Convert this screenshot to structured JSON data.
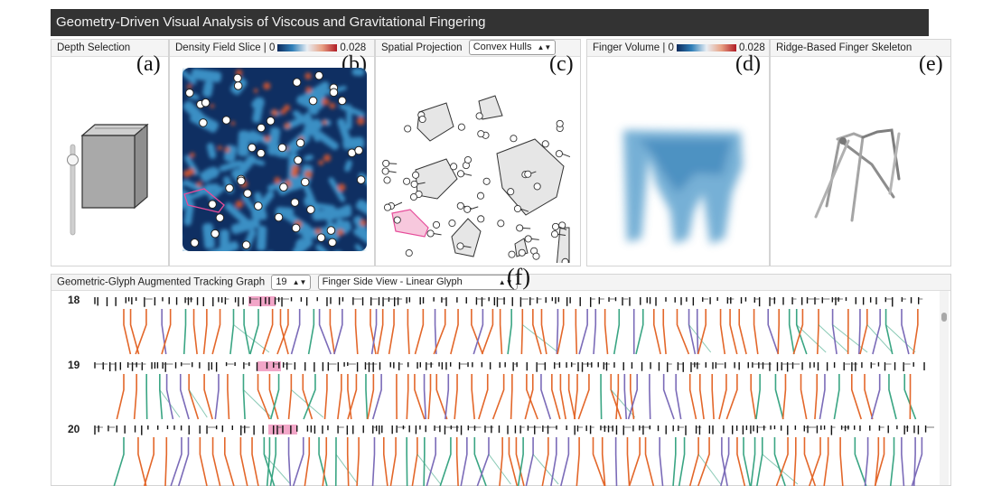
{
  "app": {
    "title": "Geometry-Driven Visual Analysis of Viscous and Gravitational Fingering"
  },
  "panels": {
    "a": {
      "title": "Depth Selection",
      "label": "(a)"
    },
    "b": {
      "title": "Density Field Slice | 0",
      "colorbar_max": "0.028",
      "label": "(b)"
    },
    "c": {
      "title": "Spatial Projection",
      "select_value": "Convex Hulls",
      "label": "(c)"
    },
    "d": {
      "title": "Finger Volume | 0",
      "colorbar_max": "0.028",
      "label": "(d)"
    },
    "e": {
      "title": "Ridge-Based Finger Skeleton",
      "label": "(e)"
    }
  },
  "tracking": {
    "title": "Geometric-Glyph Augmented Tracking Graph",
    "step_select": "19",
    "view_select": "Finger Side View - Linear Glyph",
    "label": "(f)",
    "rows": [
      "18",
      "19",
      "20"
    ]
  },
  "colors": {
    "titlebar": "#333333",
    "orange": "#e3672a",
    "purple": "#7b6bb8",
    "green": "#3aa583",
    "highlight": "#f2a6c8",
    "density_dark": "#0d2a5c",
    "density_mid": "#3b8fc4",
    "density_high": "#e85a2a"
  },
  "icons": {
    "select_arrow": "updown-arrow-icon",
    "depth_slider": "slider-handle-icon",
    "cube": "cube-icon"
  }
}
